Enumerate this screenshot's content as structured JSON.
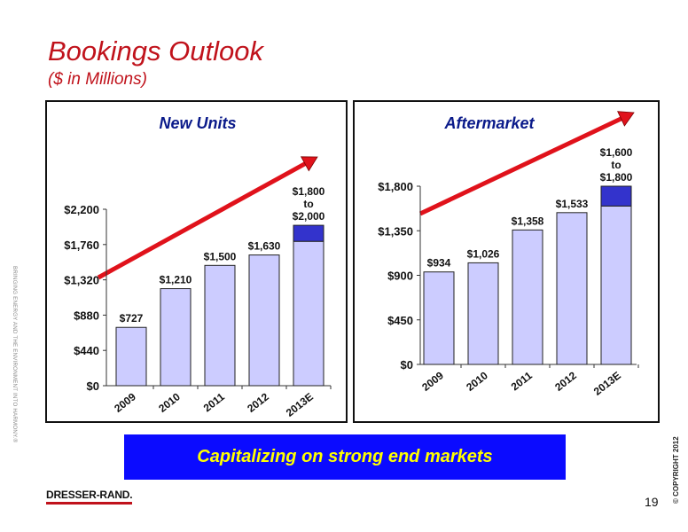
{
  "header": {
    "title": "Bookings Outlook",
    "subtitle": "($ in Millions)"
  },
  "side_text": "BRINGING ENERGY AND THE ENVIRONMENT INTO HARMONY.®",
  "copyright": "© COPYRIGHT 2012",
  "banner": {
    "text": "Capitalizing on strong end markets"
  },
  "logo": {
    "text": "DRESSER-RAND."
  },
  "page_number": "19",
  "colors": {
    "title": "#c0121b",
    "bar": "#ccccff",
    "range_bar": "#3333cc",
    "arrow": "#e0121b",
    "banner_bg": "#0b0bff",
    "banner_text": "#ffff00"
  },
  "chart_data": [
    {
      "type": "bar",
      "title": "New Units",
      "categories": [
        "2009",
        "2010",
        "2011",
        "2012",
        "2013E"
      ],
      "values": [
        727,
        1210,
        1500,
        1630,
        1800
      ],
      "range_extension": {
        "category": "2013E",
        "low": 1800,
        "high": 2000
      },
      "data_labels": [
        "$727",
        "$1,210",
        "$1,500",
        "$1,630",
        "$1,800\nto\n$2,000"
      ],
      "yticks": [
        "$0",
        "$440",
        "$880",
        "$1,320",
        "$1,760",
        "$2,200"
      ],
      "ylim": [
        0,
        2200
      ],
      "grid": false
    },
    {
      "type": "bar",
      "title": "Aftermarket",
      "categories": [
        "2009",
        "2010",
        "2011",
        "2012",
        "2013E"
      ],
      "values": [
        934,
        1026,
        1358,
        1533,
        1600
      ],
      "range_extension": {
        "category": "2013E",
        "low": 1600,
        "high": 1800
      },
      "data_labels": [
        "$934",
        "$1,026",
        "$1,358",
        "$1,533",
        "$1,600\nto\n$1,800"
      ],
      "yticks": [
        "$0",
        "$450",
        "$900",
        "$1,350",
        "$1,800"
      ],
      "ylim": [
        0,
        1800
      ],
      "grid": false
    }
  ]
}
